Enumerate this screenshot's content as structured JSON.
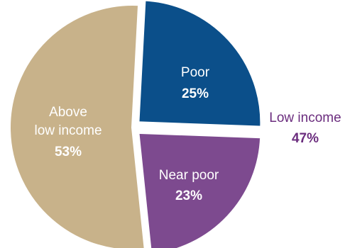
{
  "chart_data": {
    "type": "pie",
    "slices": [
      {
        "key": "poor",
        "label": "Poor",
        "value_label": "25%",
        "value": 25,
        "color": "#0b4f8a"
      },
      {
        "key": "near_poor",
        "label": "Near poor",
        "value_label": "23%",
        "value": 23,
        "color": "#7d4a8f"
      },
      {
        "key": "above",
        "label": "Above low income",
        "label_lines": [
          "Above",
          "low income"
        ],
        "value_label": "53%",
        "value": 53,
        "color": "#c8b28a"
      }
    ],
    "group_annotation": {
      "label": "Low income",
      "value_label": "47%",
      "value": 47,
      "color": "#6b2d7e"
    }
  }
}
